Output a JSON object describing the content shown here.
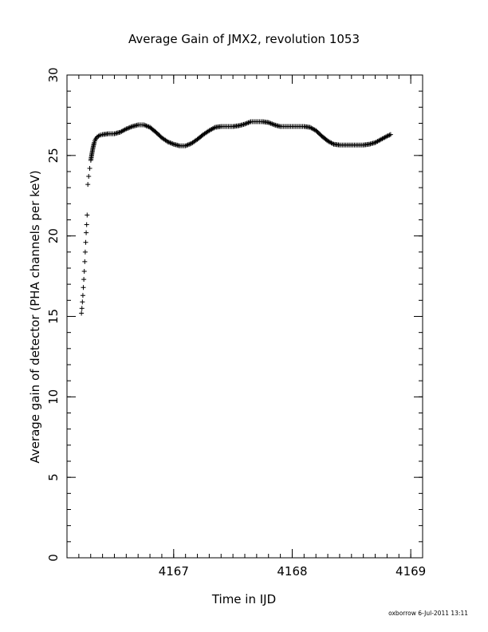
{
  "footer": "oxborrow 6-Jul-2011 13:11",
  "chart_data": {
    "type": "scatter",
    "title": "Average Gain of JMX2, revolution 1053",
    "xlabel": "Time in IJD",
    "ylabel": "Average gain of detector (PHA channels per keV)",
    "xlim": [
      4166.1,
      4169.1
    ],
    "ylim": [
      0,
      30
    ],
    "xticks": [
      {
        "value": 4167,
        "label": "4167"
      },
      {
        "value": 4168,
        "label": "4168"
      },
      {
        "value": 4169,
        "label": "4169"
      }
    ],
    "yticks": [
      {
        "value": 0,
        "label": "0"
      },
      {
        "value": 5,
        "label": "5"
      },
      {
        "value": 10,
        "label": "10"
      },
      {
        "value": 15,
        "label": "15"
      },
      {
        "value": 20,
        "label": "20"
      },
      {
        "value": 25,
        "label": "25"
      },
      {
        "value": 30,
        "label": "30"
      }
    ],
    "grid": false,
    "legend": "none",
    "marker": "plus",
    "color": "#000000",
    "x": [
      4166.222,
      4166.226,
      4166.23,
      4166.234,
      4166.238,
      4166.242,
      4166.246,
      4166.25,
      4166.254,
      4166.258,
      4166.262,
      4166.266,
      4166.27,
      4166.276,
      4166.283,
      4166.292,
      4166.301,
      4166.31,
      4166.32,
      4166.33,
      4166.34,
      4166.355,
      4166.375,
      4166.4,
      4166.45,
      4166.5,
      4166.55,
      4166.6,
      4166.65,
      4166.7,
      4166.75,
      4166.8,
      4166.85,
      4166.9,
      4166.95,
      4167.0,
      4167.05,
      4167.1,
      4167.15,
      4167.2,
      4167.25,
      4167.3,
      4167.35,
      4167.4,
      4167.45,
      4167.5,
      4167.55,
      4167.6,
      4167.65,
      4167.7,
      4167.75,
      4167.8,
      4167.85,
      4167.9,
      4167.95,
      4168.0,
      4168.05,
      4168.1,
      4168.15,
      4168.2,
      4168.25,
      4168.3,
      4168.35,
      4168.4,
      4168.45,
      4168.5,
      4168.55,
      4168.6,
      4168.65,
      4168.7,
      4168.75,
      4168.8,
      4168.83
    ],
    "y": [
      15.2,
      15.5,
      15.9,
      16.3,
      16.8,
      17.3,
      17.8,
      18.4,
      19.0,
      19.6,
      20.2,
      20.7,
      21.3,
      23.2,
      23.7,
      24.2,
      24.7,
      25.1,
      25.5,
      25.8,
      26.0,
      26.15,
      26.25,
      26.3,
      26.35,
      26.35,
      26.45,
      26.65,
      26.8,
      26.9,
      26.9,
      26.75,
      26.45,
      26.1,
      25.85,
      25.7,
      25.6,
      25.6,
      25.75,
      26.0,
      26.3,
      26.55,
      26.75,
      26.8,
      26.8,
      26.8,
      26.85,
      26.95,
      27.1,
      27.1,
      27.1,
      27.05,
      26.9,
      26.8,
      26.8,
      26.8,
      26.8,
      26.8,
      26.75,
      26.55,
      26.2,
      25.9,
      25.7,
      25.65,
      25.65,
      25.65,
      25.65,
      25.65,
      25.7,
      25.8,
      26.0,
      26.2,
      26.3
    ]
  }
}
